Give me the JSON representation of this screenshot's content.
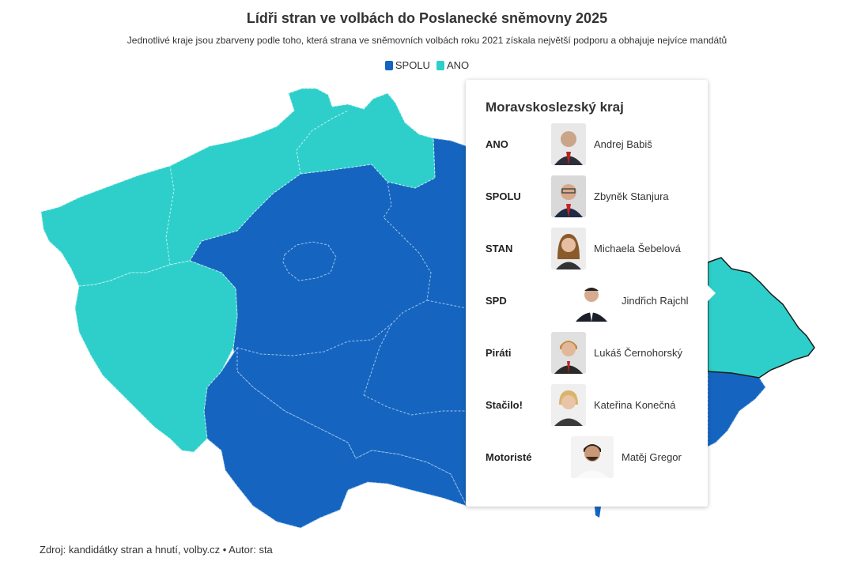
{
  "title": "Lídři stran ve volbách do Poslanecké sněmovny 2025",
  "subtitle": "Jednotlivé kraje jsou zbarveny podle toho, která strana ve sněmovních volbách roku 2021 získala největší podporu a obhajuje nejvíce mandátů",
  "legend": [
    {
      "label": "SPOLU",
      "color": "#1565c0"
    },
    {
      "label": "ANO",
      "color": "#2ecfca"
    }
  ],
  "colors": {
    "spolu": "#1565c0",
    "ano": "#2ecfca"
  },
  "tooltip": {
    "region": "Moravskoslezský kraj",
    "rows": [
      {
        "party": "ANO",
        "name": "Andrej Babiš"
      },
      {
        "party": "SPOLU",
        "name": "Zbyněk Stanjura"
      },
      {
        "party": "STAN",
        "name": "Michaela Šebelová"
      },
      {
        "party": "SPD",
        "name": "Jindřich Rajchl"
      },
      {
        "party": "Piráti",
        "name": "Lukáš Černohorský"
      },
      {
        "party": "Stačilo!",
        "name": "Kateřina Konečná"
      },
      {
        "party": "Motoristé",
        "name": "Matěj Gregor"
      }
    ]
  },
  "source": "Zdroj: kandidátky stran a hnutí, volby.cz • Autor: sta"
}
